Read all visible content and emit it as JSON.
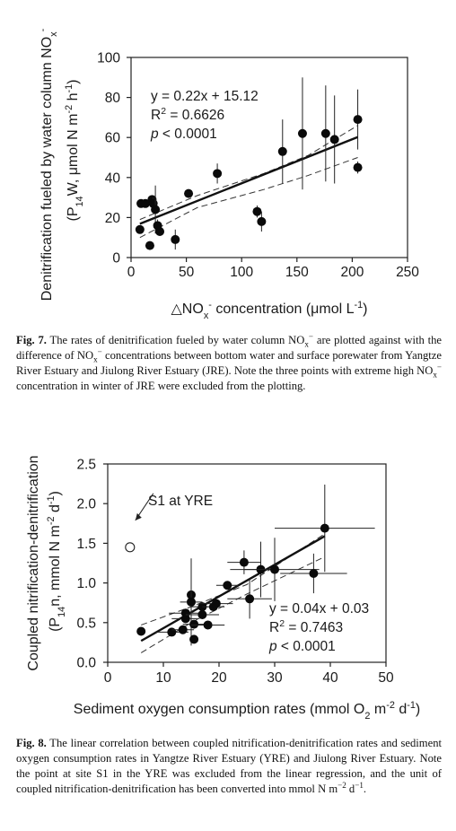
{
  "fig7": {
    "chart_data": {
      "type": "scatter",
      "xlabel_parts": [
        "△NO",
        "x",
        "-",
        " concentration (μmol L",
        "-1",
        ")"
      ],
      "ylabel_line1_parts": [
        "Denitrification fueled by water column NO",
        "x",
        "-"
      ],
      "ylabel_line2_parts": [
        "(P",
        "14",
        "W, μmol N m",
        "-2",
        " h",
        "-1",
        ")"
      ],
      "xlim": [
        0,
        250
      ],
      "ylim": [
        0,
        100
      ],
      "xticks": [
        0,
        50,
        100,
        150,
        200,
        250
      ],
      "yticks": [
        0,
        20,
        40,
        60,
        80,
        100
      ],
      "annotation": {
        "eq": "y = 0.22x + 15.12",
        "r2_prefix": "R",
        "r2_sup": "2",
        "r2_value": " = 0.6626",
        "p_italic": "p",
        "p_rest": " < 0.0001"
      },
      "fit": {
        "slope": 0.22,
        "intercept": 15.12,
        "x_range": [
          8,
          205
        ]
      },
      "ci_upper": [
        [
          8,
          19
        ],
        [
          60,
          31
        ],
        [
          120,
          42
        ],
        [
          160,
          51
        ],
        [
          205,
          66
        ]
      ],
      "ci_lower": [
        [
          8,
          10
        ],
        [
          60,
          25
        ],
        [
          120,
          34
        ],
        [
          160,
          41
        ],
        [
          205,
          50
        ]
      ],
      "points": [
        {
          "x": 8,
          "y": 14,
          "err": 0
        },
        {
          "x": 9,
          "y": 27,
          "err": 0
        },
        {
          "x": 13,
          "y": 27,
          "err": 0
        },
        {
          "x": 17,
          "y": 6,
          "err": 0
        },
        {
          "x": 19,
          "y": 29,
          "err": 0
        },
        {
          "x": 20,
          "y": 27,
          "err": 3
        },
        {
          "x": 22,
          "y": 24,
          "err": 12
        },
        {
          "x": 24,
          "y": 16,
          "err": 3
        },
        {
          "x": 26,
          "y": 13,
          "err": 2
        },
        {
          "x": 40,
          "y": 9,
          "err": 5
        },
        {
          "x": 52,
          "y": 32,
          "err": 0
        },
        {
          "x": 78,
          "y": 42,
          "err": 5
        },
        {
          "x": 114,
          "y": 23,
          "err": 3
        },
        {
          "x": 118,
          "y": 18,
          "err": 5
        },
        {
          "x": 137,
          "y": 53,
          "err": 16
        },
        {
          "x": 155,
          "y": 62,
          "err": 28
        },
        {
          "x": 176,
          "y": 62,
          "err": 24
        },
        {
          "x": 184,
          "y": 59,
          "err": 22
        },
        {
          "x": 205,
          "y": 69,
          "err": 15
        },
        {
          "x": 205,
          "y": 45,
          "err": 3
        }
      ]
    },
    "caption": {
      "label": "Fig. 7.",
      "t1": " The rates of denitrification fueled by water column NO",
      "t1_sub": "x",
      "t1_sup": "−",
      "t2": " are plotted against with the difference of NO",
      "t2_sub": "x",
      "t2_sup": "−",
      "t3": " concentrations between bottom water and surface porewater from Yangtze River Estuary and Jiulong River Estuary (JRE). Note the three points with extreme high NO",
      "t3_sub": "x",
      "t3_sup": "−",
      "t4": " concentration in winter of JRE were excluded from the plotting."
    }
  },
  "fig8": {
    "chart_data": {
      "type": "scatter",
      "xlabel_parts": [
        "Sediment oxygen consumption rates (mmol O",
        "2",
        " m",
        "-2",
        " d",
        "-1",
        ")"
      ],
      "ylabel_line1": "Coupled nitrification-denitrification",
      "ylabel_line2_parts": [
        "(P",
        "14",
        "n, mmol N m",
        "-2",
        " d",
        "-1",
        ")"
      ],
      "xlim": [
        0,
        50
      ],
      "ylim": [
        0,
        2.5
      ],
      "xticks": [
        0,
        10,
        20,
        30,
        40,
        50
      ],
      "yticks": [
        "0.0",
        "0.5",
        "1.0",
        "1.5",
        "2.0",
        "2.5"
      ],
      "annotation": {
        "eq": "y = 0.04x + 0.03",
        "r2_prefix": "R",
        "r2_sup": "2",
        "r2_value": " = 0.7463",
        "p_italic": "p",
        "p_rest": " < 0.0001"
      },
      "site_label": "S1 at YRE",
      "excluded_point": {
        "x": 4,
        "y": 1.45,
        "err_y": 0.05,
        "err_x": 0.3
      },
      "fit": {
        "slope": 0.04,
        "intercept": 0.03,
        "x_range": [
          6,
          39
        ]
      },
      "ci_upper": [
        [
          6,
          0.47
        ],
        [
          15,
          0.7
        ],
        [
          25,
          0.98
        ],
        [
          39,
          1.62
        ]
      ],
      "ci_lower": [
        [
          6,
          0.12
        ],
        [
          15,
          0.5
        ],
        [
          25,
          0.86
        ],
        [
          39,
          1.33
        ]
      ],
      "points": [
        {
          "x": 6,
          "y": 0.39,
          "ex": 0,
          "ey": 0
        },
        {
          "x": 11.5,
          "y": 0.38,
          "ex": 3,
          "ey": 0.05
        },
        {
          "x": 13.5,
          "y": 0.41,
          "ex": 2,
          "ey": 0.03
        },
        {
          "x": 14,
          "y": 0.62,
          "ex": 3,
          "ey": 0.05
        },
        {
          "x": 14,
          "y": 0.55,
          "ex": 2.5,
          "ey": 0.05
        },
        {
          "x": 15,
          "y": 0.85,
          "ex": 0,
          "ey": 0.05
        },
        {
          "x": 15,
          "y": 0.76,
          "ex": 2,
          "ey": 0.55
        },
        {
          "x": 15.5,
          "y": 0.48,
          "ex": 2,
          "ey": 0.05
        },
        {
          "x": 15.5,
          "y": 0.29,
          "ex": 0,
          "ey": 0.05
        },
        {
          "x": 17,
          "y": 0.7,
          "ex": 2,
          "ey": 0.05
        },
        {
          "x": 17,
          "y": 0.6,
          "ex": 3,
          "ey": 0.05
        },
        {
          "x": 18,
          "y": 0.47,
          "ex": 3,
          "ey": 0.05
        },
        {
          "x": 19,
          "y": 0.7,
          "ex": 2,
          "ey": 0.05
        },
        {
          "x": 19.5,
          "y": 0.74,
          "ex": 3,
          "ey": 0.05
        },
        {
          "x": 21.5,
          "y": 0.97,
          "ex": 2,
          "ey": 0.05
        },
        {
          "x": 24.5,
          "y": 1.26,
          "ex": 3,
          "ey": 0.15
        },
        {
          "x": 25.5,
          "y": 0.8,
          "ex": 4,
          "ey": 0.25
        },
        {
          "x": 27.5,
          "y": 1.17,
          "ex": 3,
          "ey": 0.35
        },
        {
          "x": 30,
          "y": 1.17,
          "ex": 8,
          "ey": 0.4
        },
        {
          "x": 37,
          "y": 1.12,
          "ex": 6,
          "ey": 0.25
        },
        {
          "x": 39,
          "y": 1.69,
          "ex": 9,
          "ey": 0.55
        }
      ]
    },
    "caption": {
      "label": "Fig. 8.",
      "t1": " The linear correlation between coupled nitrification-denitrification rates and sediment oxygen consumption rates in Yangtze River Estuary (YRE) and Jiulong River Estuary. Note the point at site S1 in the YRE was excluded from the linear regression, and the unit of coupled nitrification-denitrification has been converted into mmol N m",
      "t1_sup": "−2",
      "t2": " d",
      "t2_sup": "−1",
      "t3": "."
    }
  }
}
